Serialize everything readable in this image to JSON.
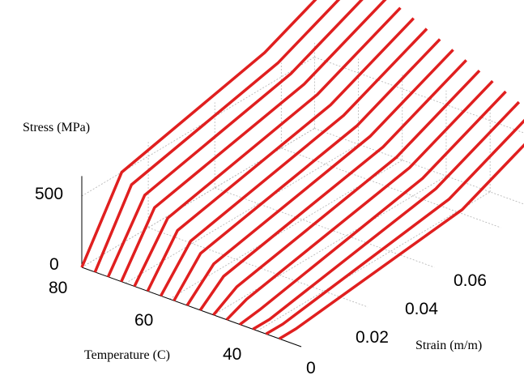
{
  "chart_data": {
    "type": "line",
    "projection": "3d",
    "grid": true,
    "line_color": "#e01f1f",
    "zlabel": "Stress (MPa)",
    "ylabel": "Temperature (C)",
    "xlabel": "Strain (m/m)",
    "z_ticks": [
      "0",
      "500"
    ],
    "y_ticks": [
      "80",
      "60",
      "40"
    ],
    "x_ticks": [
      "0",
      "0.02",
      "0.04",
      "0.06"
    ],
    "x_tick_values": [
      0,
      0.02,
      0.04,
      0.06
    ],
    "xlim": [
      0,
      0.07
    ],
    "ylim": [
      30,
      80
    ],
    "zlim": [
      0,
      1000
    ],
    "series": [
      {
        "temperature": 80,
        "x": [
          0,
          0.012,
          0.055,
          0.08
        ],
        "z": [
          0,
          500,
          740,
          1000
        ]
      },
      {
        "temperature": 77,
        "x": [
          0,
          0.011,
          0.055,
          0.08
        ],
        "z": [
          0,
          460,
          700,
          960
        ]
      },
      {
        "temperature": 74,
        "x": [
          0,
          0.011,
          0.055,
          0.08
        ],
        "z": [
          0,
          420,
          660,
          920
        ]
      },
      {
        "temperature": 71,
        "x": [
          0,
          0.01,
          0.055,
          0.08
        ],
        "z": [
          0,
          380,
          620,
          880
        ]
      },
      {
        "temperature": 68,
        "x": [
          0,
          0.01,
          0.055,
          0.08
        ],
        "z": [
          0,
          340,
          580,
          840
        ]
      },
      {
        "temperature": 65,
        "x": [
          0,
          0.009,
          0.055,
          0.08
        ],
        "z": [
          0,
          300,
          540,
          800
        ]
      },
      {
        "temperature": 62,
        "x": [
          0,
          0.009,
          0.055,
          0.08
        ],
        "z": [
          0,
          260,
          500,
          760
        ]
      },
      {
        "temperature": 59,
        "x": [
          0,
          0.008,
          0.055,
          0.08
        ],
        "z": [
          0,
          220,
          460,
          720
        ]
      },
      {
        "temperature": 56,
        "x": [
          0,
          0.008,
          0.055,
          0.08
        ],
        "z": [
          0,
          180,
          420,
          680
        ]
      },
      {
        "temperature": 53,
        "x": [
          0,
          0.007,
          0.055,
          0.08
        ],
        "z": [
          0,
          140,
          380,
          640
        ]
      },
      {
        "temperature": 50,
        "x": [
          0,
          0.007,
          0.055,
          0.08
        ],
        "z": [
          0,
          100,
          340,
          600
        ]
      },
      {
        "temperature": 47,
        "x": [
          0,
          0.006,
          0.055,
          0.08
        ],
        "z": [
          0,
          60,
          300,
          560
        ]
      },
      {
        "temperature": 44,
        "x": [
          0,
          0.006,
          0.055,
          0.08
        ],
        "z": [
          0,
          20,
          260,
          520
        ]
      },
      {
        "temperature": 41,
        "x": [
          0,
          0.005,
          0.055,
          0.08
        ],
        "z": [
          0,
          0,
          220,
          480
        ]
      },
      {
        "temperature": 38,
        "x": [
          0,
          0.005,
          0.055,
          0.08
        ],
        "z": [
          0,
          0,
          180,
          440
        ]
      },
      {
        "temperature": 35,
        "x": [
          0,
          0.005,
          0.055,
          0.08
        ],
        "z": [
          0,
          0,
          140,
          400
        ]
      }
    ]
  }
}
